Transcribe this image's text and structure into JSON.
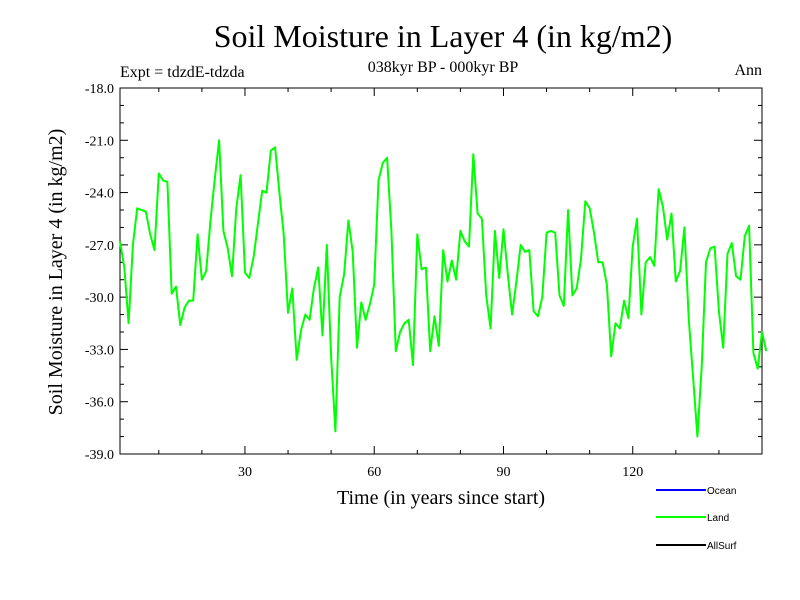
{
  "chart_data": {
    "type": "line",
    "title": "Soil Moisture in Layer 4 (in kg/m2)",
    "subtitle": "038kyr BP - 000kyr BP",
    "experiment": "Expt = tdzdE-tdzda",
    "season": "Ann",
    "xlabel": "Time (in years since start)",
    "ylabel": "Soil Moisture in Layer 4 (in kg/m2)",
    "xlim": [
      1,
      150
    ],
    "ylim": [
      -39.0,
      -18.0
    ],
    "x_ticks": [
      30,
      60,
      90,
      120
    ],
    "x_tick_labels": [
      "30",
      "60",
      "90",
      "120"
    ],
    "y_ticks": [
      -18,
      -21,
      -24,
      -27,
      -30,
      -33,
      -36,
      -39
    ],
    "y_tick_labels": [
      "-18.0",
      "-21.0",
      "-24.0",
      "-27.0",
      "-30.0",
      "-33.0",
      "-36.0",
      "-39.0"
    ],
    "legend": [
      {
        "name": "Ocean",
        "color": "#0000ff"
      },
      {
        "name": "Land",
        "color": "#00ff00"
      },
      {
        "name": "AllSurf",
        "color": "#000000"
      }
    ],
    "series": [
      {
        "name": "Land",
        "color": "#00ff00",
        "values": [
          -26.8,
          -28.3,
          -31.5,
          -27.0,
          -24.9,
          -25.0,
          -25.1,
          -26.4,
          -27.3,
          -22.9,
          -23.3,
          -23.4,
          -29.8,
          -29.4,
          -31.6,
          -30.6,
          -30.2,
          -30.2,
          -26.4,
          -29.0,
          -28.5,
          -25.6,
          -23.2,
          -21.0,
          -26.2,
          -27.2,
          -28.8,
          -24.9,
          -23.0,
          -28.6,
          -28.9,
          -27.7,
          -25.8,
          -23.9,
          -24.0,
          -21.6,
          -21.4,
          -24.0,
          -26.4,
          -30.9,
          -29.5,
          -33.6,
          -31.9,
          -31.0,
          -31.3,
          -29.5,
          -28.3,
          -32.2,
          -27.0,
          -33.4,
          -37.7,
          -30.0,
          -28.7,
          -25.6,
          -27.4,
          -32.9,
          -30.3,
          -31.3,
          -30.4,
          -29.3,
          -23.3,
          -22.3,
          -22.0,
          -26.2,
          -33.1,
          -32.0,
          -31.5,
          -31.3,
          -33.9,
          -26.4,
          -28.4,
          -28.3,
          -33.1,
          -31.1,
          -32.8,
          -27.3,
          -29.1,
          -27.9,
          -29.0,
          -26.2,
          -26.8,
          -27.1,
          -21.8,
          -25.2,
          -25.5,
          -29.9,
          -31.8,
          -26.2,
          -28.9,
          -26.1,
          -28.7,
          -31.0,
          -29.1,
          -27.0,
          -27.4,
          -27.3,
          -30.8,
          -31.1,
          -30.0,
          -26.3,
          -26.2,
          -26.3,
          -29.9,
          -30.5,
          -25.0,
          -29.9,
          -29.5,
          -27.8,
          -24.5,
          -24.9,
          -26.3,
          -28.0,
          -28.0,
          -29.3,
          -33.4,
          -31.5,
          -31.8,
          -30.2,
          -31.2,
          -27.1,
          -25.5,
          -31.0,
          -28.0,
          -27.7,
          -28.2,
          -23.8,
          -24.8,
          -26.7,
          -25.2,
          -29.1,
          -28.5,
          -26.0,
          -31.3,
          -34.6,
          -38.0,
          -34.0,
          -28.0,
          -27.2,
          -27.1,
          -30.8,
          -32.9,
          -27.5,
          -26.9,
          -28.8,
          -29.0,
          -26.5,
          -25.9,
          -33.2,
          -34.1,
          -32.0,
          -33.1
        ]
      }
    ]
  }
}
